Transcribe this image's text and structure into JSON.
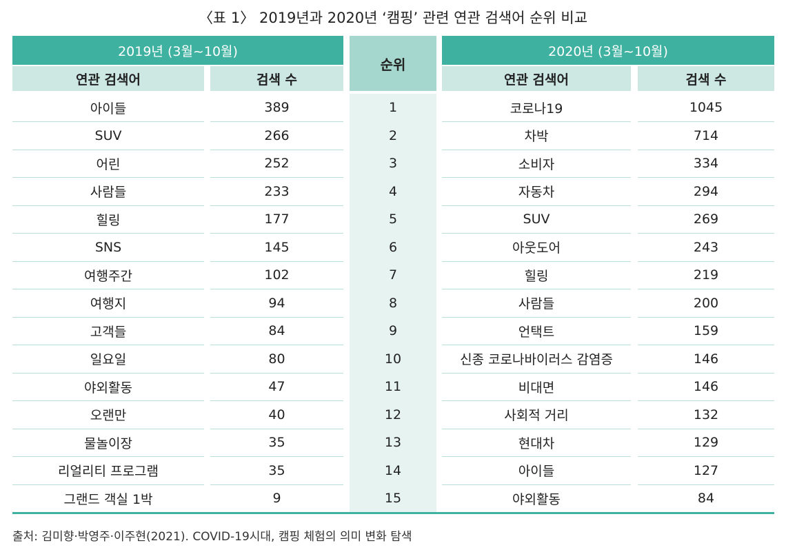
{
  "title": "〈표 1〉 2019년과 2020년 ‘캠핑’ 관련 연관 검색어 순위 비교",
  "headers": {
    "left_group": "2019년 (3월~10월)",
    "right_group": "2020년 (3월~10월)",
    "rank": "순위",
    "left_term": "연관 검색어",
    "left_count": "검색 수",
    "right_term": "연관 검색어",
    "right_count": "검색 수"
  },
  "rows": [
    {
      "t2019": "아이들",
      "c2019": "389",
      "rank": "1",
      "t2020": "코로나19",
      "c2020": "1045"
    },
    {
      "t2019": "SUV",
      "c2019": "266",
      "rank": "2",
      "t2020": "차박",
      "c2020": "714"
    },
    {
      "t2019": "어린",
      "c2019": "252",
      "rank": "3",
      "t2020": "소비자",
      "c2020": "334"
    },
    {
      "t2019": "사람들",
      "c2019": "233",
      "rank": "4",
      "t2020": "자동차",
      "c2020": "294"
    },
    {
      "t2019": "힐링",
      "c2019": "177",
      "rank": "5",
      "t2020": "SUV",
      "c2020": "269"
    },
    {
      "t2019": "SNS",
      "c2019": "145",
      "rank": "6",
      "t2020": "아웃도어",
      "c2020": "243"
    },
    {
      "t2019": "여행주간",
      "c2019": "102",
      "rank": "7",
      "t2020": "힐링",
      "c2020": "219"
    },
    {
      "t2019": "여행지",
      "c2019": "94",
      "rank": "8",
      "t2020": "사람들",
      "c2020": "200"
    },
    {
      "t2019": "고객들",
      "c2019": "84",
      "rank": "9",
      "t2020": "언택트",
      "c2020": "159"
    },
    {
      "t2019": "일요일",
      "c2019": "80",
      "rank": "10",
      "t2020": "신종 코로나바이러스 감염증",
      "c2020": "146"
    },
    {
      "t2019": "야외활동",
      "c2019": "47",
      "rank": "11",
      "t2020": "비대면",
      "c2020": "146"
    },
    {
      "t2019": "오랜만",
      "c2019": "40",
      "rank": "12",
      "t2020": "사회적 거리",
      "c2020": "132"
    },
    {
      "t2019": "물놀이장",
      "c2019": "35",
      "rank": "13",
      "t2020": "현대차",
      "c2020": "129"
    },
    {
      "t2019": "리얼리티 프로그램",
      "c2019": "35",
      "rank": "14",
      "t2020": "아이들",
      "c2020": "127"
    },
    {
      "t2019": "그랜드 객실 1박",
      "c2019": "9",
      "rank": "15",
      "t2020": "야외활동",
      "c2020": "84"
    }
  ],
  "source": "출처: 김미향·박영주·이주현(2021). COVID-19시대, 캠핑 체험의 의미 변화 탐색",
  "colors": {
    "header_teal": "#3fb1a0",
    "subheader": "#cde8e3",
    "rank_header": "#a6d7ce",
    "rank_column": "#e6f3f1"
  }
}
